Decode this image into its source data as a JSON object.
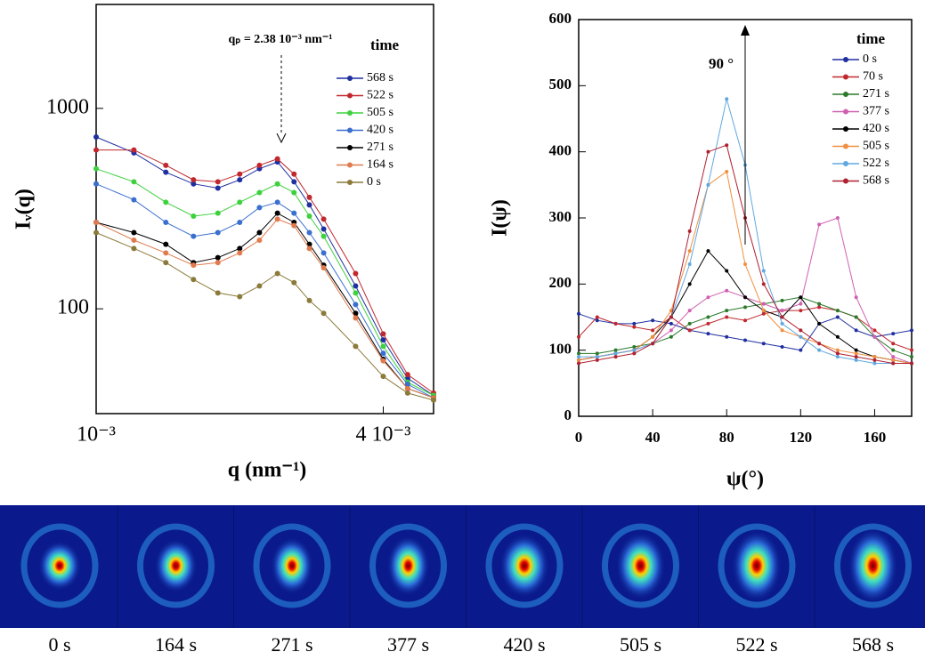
{
  "chart_data": [
    {
      "type": "line",
      "log_x": true,
      "log_y": true,
      "x_label": "q (nm⁻¹)",
      "y_label": "Iᵥ(q)",
      "legend_title": "time",
      "annotation": "qₚ = 2.38 10⁻³ nm⁻¹",
      "xlim": [
        0.001,
        0.0051
      ],
      "ylim": [
        30,
        3300
      ],
      "xticks": [
        {
          "value": 0.001,
          "label": "10⁻³"
        },
        {
          "value": 0.004,
          "label": "4 10⁻³"
        }
      ],
      "yticks": [
        100,
        1000
      ],
      "x": [
        0.001,
        0.0012,
        0.0014,
        0.0016,
        0.0018,
        0.002,
        0.0022,
        0.0024,
        0.0026,
        0.0028,
        0.003,
        0.0035,
        0.004,
        0.0045,
        0.0051
      ],
      "series": [
        {
          "name": "568 s",
          "color": "#1f2fa0",
          "values": [
            720,
            600,
            480,
            420,
            400,
            440,
            500,
            540,
            430,
            330,
            250,
            130,
            70,
            45,
            37
          ]
        },
        {
          "name": "522 s",
          "color": "#c0282d",
          "values": [
            620,
            620,
            520,
            440,
            430,
            470,
            520,
            560,
            470,
            360,
            280,
            150,
            75,
            47,
            38
          ]
        },
        {
          "name": "505 s",
          "color": "#3dd13d",
          "values": [
            500,
            430,
            340,
            290,
            300,
            340,
            380,
            420,
            380,
            290,
            230,
            120,
            65,
            43,
            37
          ]
        },
        {
          "name": "420 s",
          "color": "#3a6fd0",
          "values": [
            420,
            350,
            270,
            230,
            240,
            270,
            320,
            340,
            300,
            240,
            190,
            105,
            60,
            42,
            36
          ]
        },
        {
          "name": "271 s",
          "color": "#000000",
          "values": [
            270,
            240,
            210,
            170,
            180,
            200,
            240,
            300,
            270,
            210,
            165,
            95,
            56,
            40,
            36
          ]
        },
        {
          "name": "164 s",
          "color": "#e07b4f",
          "values": [
            270,
            220,
            190,
            165,
            170,
            190,
            220,
            280,
            260,
            200,
            160,
            90,
            55,
            40,
            36
          ]
        },
        {
          "name": "0 s",
          "color": "#8b7a3a",
          "values": [
            240,
            200,
            170,
            140,
            120,
            115,
            130,
            150,
            135,
            110,
            95,
            65,
            46,
            38,
            35
          ]
        }
      ]
    },
    {
      "type": "line",
      "log_x": false,
      "log_y": false,
      "x_label": "ψ(°)",
      "y_label": "I(ψ)",
      "legend_title": "time",
      "annotation": "90 °",
      "xlim": [
        0,
        180
      ],
      "ylim": [
        0,
        600
      ],
      "xticks": [
        0,
        40,
        80,
        120,
        160
      ],
      "yticks": [
        0,
        100,
        200,
        300,
        400,
        500,
        600
      ],
      "x": [
        0,
        10,
        20,
        30,
        40,
        50,
        60,
        70,
        80,
        90,
        100,
        110,
        120,
        130,
        140,
        150,
        160,
        170,
        180
      ],
      "series": [
        {
          "name": "0 s",
          "color": "#1f2fa0",
          "values": [
            155,
            145,
            140,
            140,
            145,
            140,
            130,
            125,
            120,
            115,
            110,
            105,
            100,
            140,
            150,
            130,
            120,
            125,
            130
          ]
        },
        {
          "name": "70 s",
          "color": "#c0282d",
          "values": [
            120,
            150,
            140,
            135,
            130,
            150,
            130,
            140,
            150,
            145,
            155,
            160,
            160,
            165,
            160,
            150,
            130,
            110,
            100
          ]
        },
        {
          "name": "271 s",
          "color": "#2a7a2a",
          "values": [
            95,
            95,
            100,
            105,
            110,
            120,
            140,
            150,
            160,
            165,
            170,
            175,
            180,
            170,
            160,
            150,
            120,
            100,
            90
          ]
        },
        {
          "name": "377 s",
          "color": "#d060b0",
          "values": [
            85,
            90,
            95,
            100,
            110,
            130,
            160,
            180,
            190,
            180,
            170,
            160,
            170,
            290,
            300,
            180,
            120,
            90,
            80
          ]
        },
        {
          "name": "420 s",
          "color": "#000000",
          "values": [
            85,
            90,
            95,
            100,
            120,
            150,
            200,
            250,
            220,
            180,
            160,
            150,
            180,
            140,
            120,
            100,
            90,
            85,
            80
          ]
        },
        {
          "name": "505 s",
          "color": "#f09040",
          "values": [
            85,
            90,
            95,
            100,
            120,
            160,
            250,
            350,
            370,
            230,
            160,
            130,
            120,
            110,
            100,
            95,
            90,
            85,
            80
          ]
        },
        {
          "name": "522 s",
          "color": "#60a8e0",
          "values": [
            90,
            90,
            95,
            100,
            110,
            150,
            230,
            350,
            480,
            380,
            220,
            140,
            120,
            100,
            90,
            85,
            80,
            80,
            80
          ]
        },
        {
          "name": "568 s",
          "color": "#b02030",
          "values": [
            80,
            85,
            90,
            95,
            110,
            150,
            280,
            400,
            410,
            300,
            200,
            150,
            130,
            110,
            95,
            90,
            85,
            80,
            80
          ]
        }
      ]
    }
  ],
  "images": {
    "labels": [
      "0 s",
      "164 s",
      "271 s",
      "377 s",
      "420 s",
      "505 s",
      "522 s",
      "568 s"
    ]
  }
}
